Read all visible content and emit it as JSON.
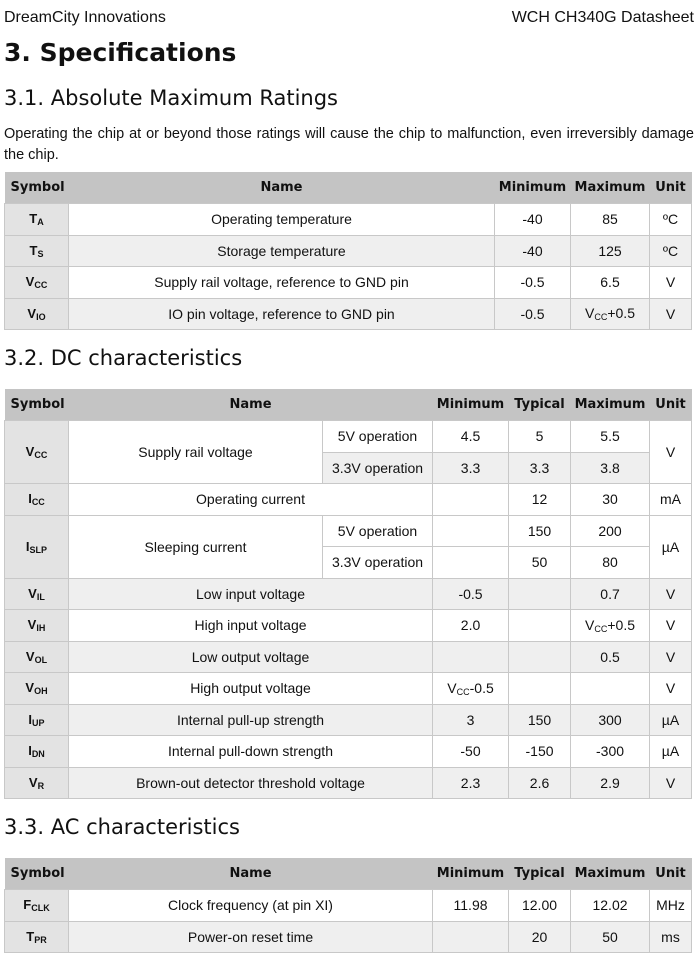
{
  "header": {
    "left": "DreamCity Innovations",
    "right": "WCH CH340G Datasheet"
  },
  "section": "3. Specifications",
  "s1": {
    "title": "3.1. Absolute Maximum Ratings",
    "text": "Operating the chip at or beyond those ratings will cause the chip to malfunction, even irreversibly damage the chip.",
    "columns": [
      "Symbol",
      "Name",
      "Minimum",
      "Maximum",
      "Unit"
    ],
    "rows": [
      {
        "sym": "T",
        "sub": "A",
        "name": "Operating temperature",
        "min": "-40",
        "max": "85",
        "unit": "ºC"
      },
      {
        "sym": "T",
        "sub": "S",
        "name": "Storage temperature",
        "min": "-40",
        "max": "125",
        "unit": "ºC"
      },
      {
        "sym": "V",
        "sub": "CC",
        "name": "Supply rail voltage, reference to GND pin",
        "min": "-0.5",
        "max": "6.5",
        "unit": "V"
      },
      {
        "sym": "V",
        "sub": "IO",
        "name": "IO pin voltage, reference to GND pin",
        "min": "-0.5",
        "max": "VCC+0.5",
        "unit": "V"
      }
    ]
  },
  "s2": {
    "title": "3.2. DC characteristics",
    "columns": [
      "Symbol",
      "Name",
      "Minimum",
      "Typical",
      "Maximum",
      "Unit"
    ],
    "rows": [
      {
        "sym": "V",
        "sub": "CC",
        "name": "Supply rail voltage",
        "unit": "V",
        "sub_rows": [
          {
            "cond": "5V operation",
            "min": "4.5",
            "typ": "5",
            "max": "5.5"
          },
          {
            "cond": "3.3V operation",
            "min": "3.3",
            "typ": "3.3",
            "max": "3.8"
          }
        ]
      },
      {
        "sym": "I",
        "sub": "CC",
        "name": "Operating current",
        "min": "",
        "typ": "12",
        "max": "30",
        "unit": "mA"
      },
      {
        "sym": "I",
        "sub": "SLP",
        "name": "Sleeping current",
        "unit": "µA",
        "sub_rows": [
          {
            "cond": "5V operation",
            "min": "",
            "typ": "150",
            "max": "200"
          },
          {
            "cond": "3.3V operation",
            "min": "",
            "typ": "50",
            "max": "80"
          }
        ]
      },
      {
        "sym": "V",
        "sub": "IL",
        "name": "Low input voltage",
        "min": "-0.5",
        "typ": "",
        "max": "0.7",
        "unit": "V"
      },
      {
        "sym": "V",
        "sub": "IH",
        "name": "High input voltage",
        "min": "2.0",
        "typ": "",
        "max": "VCC+0.5",
        "unit": "V"
      },
      {
        "sym": "V",
        "sub": "OL",
        "name": "Low output voltage",
        "min": "",
        "typ": "",
        "max": "0.5",
        "unit": "V"
      },
      {
        "sym": "V",
        "sub": "OH",
        "name": "High output voltage",
        "min": "VCC-0.5",
        "typ": "",
        "max": "",
        "unit": "V"
      },
      {
        "sym": "I",
        "sub": "UP",
        "name": "Internal pull-up strength",
        "min": "3",
        "typ": "150",
        "max": "300",
        "unit": "µA"
      },
      {
        "sym": "I",
        "sub": "DN",
        "name": "Internal pull-down strength",
        "min": "-50",
        "typ": "-150",
        "max": "-300",
        "unit": "µA"
      },
      {
        "sym": "V",
        "sub": "R",
        "name": "Brown-out detector threshold voltage",
        "min": "2.3",
        "typ": "2.6",
        "max": "2.9",
        "unit": "V"
      }
    ]
  },
  "s3": {
    "title": "3.3. AC characteristics",
    "columns": [
      "Symbol",
      "Name",
      "Minimum",
      "Typical",
      "Maximum",
      "Unit"
    ],
    "rows": [
      {
        "sym": "F",
        "sub": "CLK",
        "name": "Clock frequency (at pin XI)",
        "min": "11.98",
        "typ": "12.00",
        "max": "12.02",
        "unit": "MHz"
      },
      {
        "sym": "T",
        "sub": "PR",
        "name": "Power-on reset time",
        "min": "",
        "typ": "20",
        "max": "50",
        "unit": "ms"
      }
    ]
  }
}
